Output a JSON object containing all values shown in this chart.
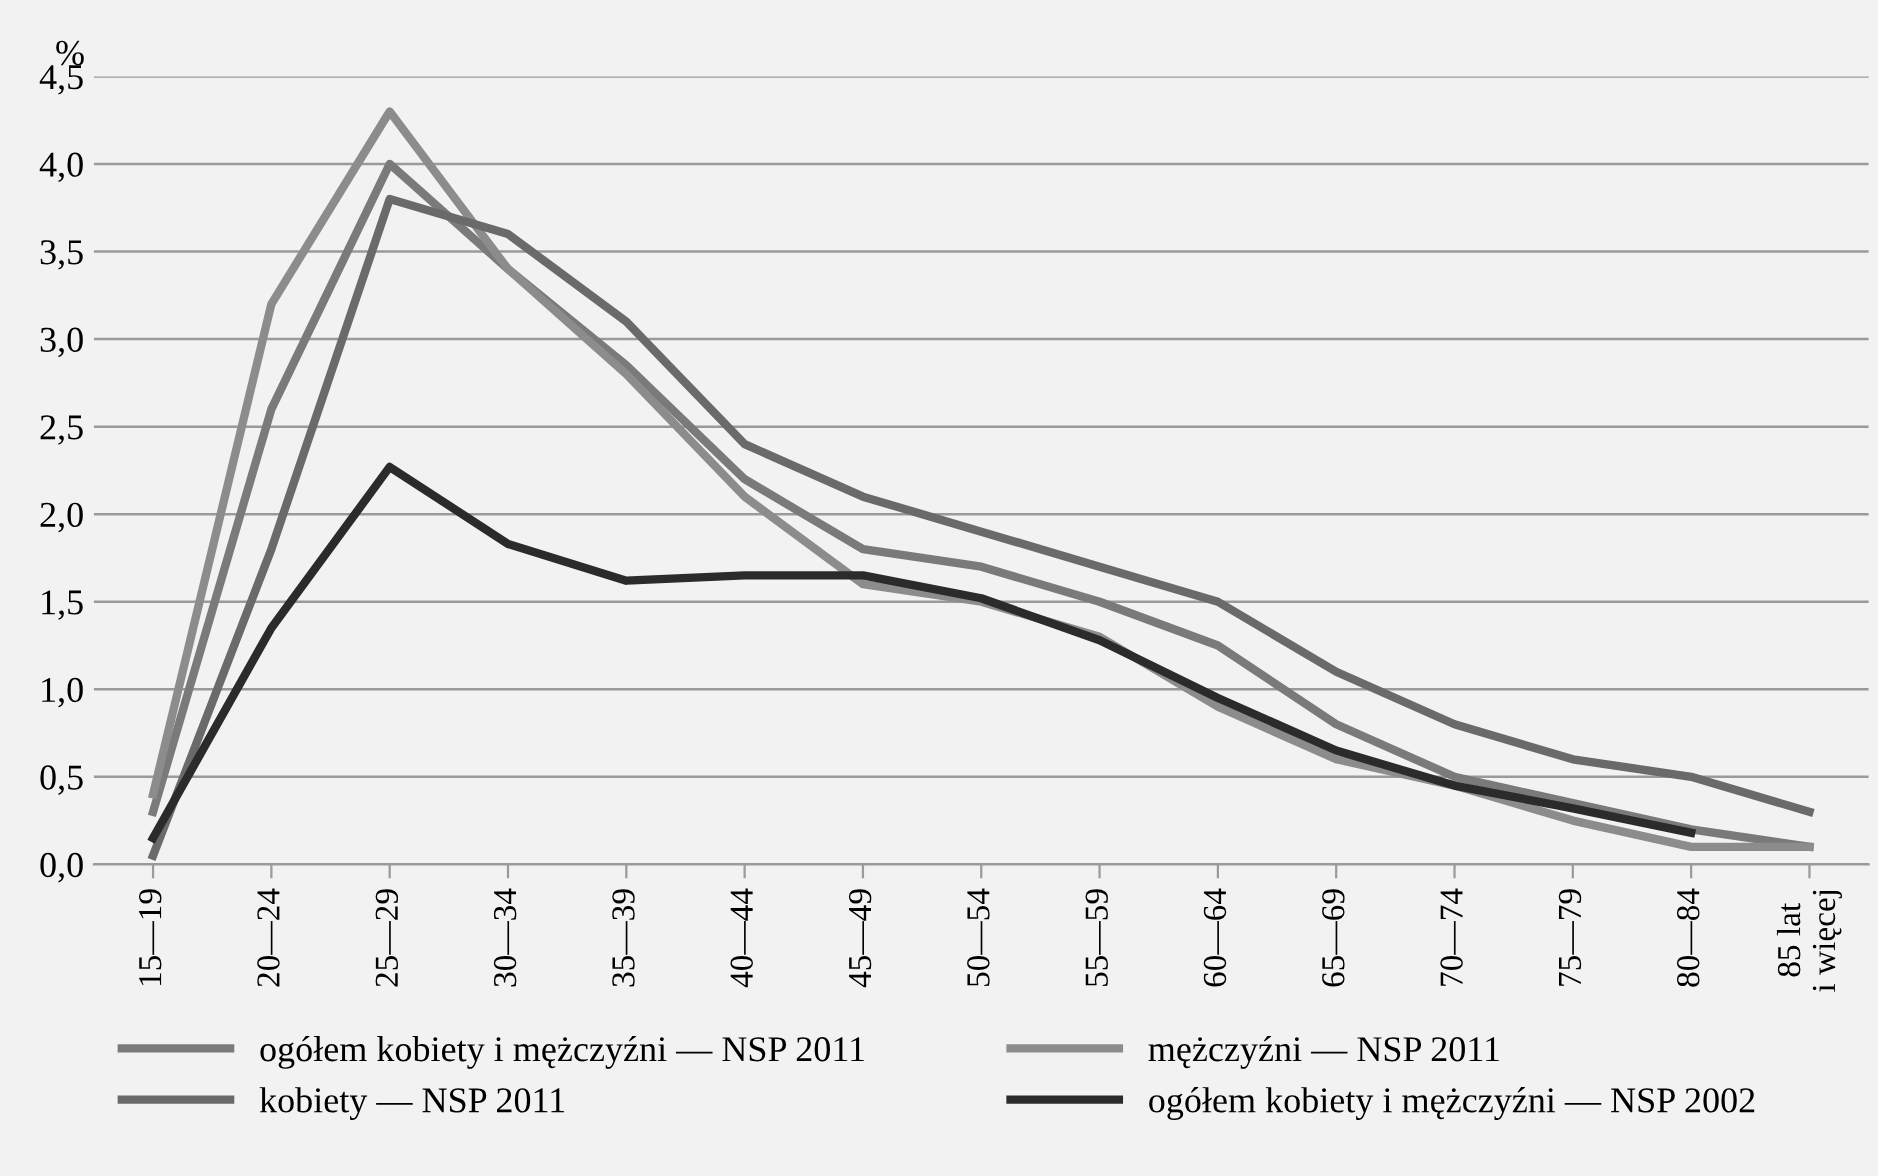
{
  "chart_data": {
    "type": "line",
    "ylabel": "%",
    "categories": [
      "15—19",
      "20—24",
      "25—29",
      "30—34",
      "35—39",
      "40—44",
      "45—49",
      "50—54",
      "55—59",
      "60—64",
      "65—69",
      "70—74",
      "75—79",
      "80—84",
      "85 lat\ni więcej"
    ],
    "series": [
      {
        "name": "ogółem kobiety i mężczyźni — NSP 2011",
        "color": "#7a7a7a",
        "values": [
          0.3,
          2.6,
          4.0,
          3.4,
          2.85,
          2.2,
          1.8,
          1.7,
          1.5,
          1.25,
          0.8,
          0.5,
          0.35,
          0.2,
          0.1
        ]
      },
      {
        "name": "mężczyźni — NSP 2011",
        "color": "#8c8c8c",
        "values": [
          0.4,
          3.2,
          4.3,
          3.4,
          2.8,
          2.1,
          1.6,
          1.5,
          1.3,
          0.9,
          0.6,
          0.45,
          0.25,
          0.1,
          0.1
        ]
      },
      {
        "name": "kobiety — NSP 2011",
        "color": "#6a6a6a",
        "values": [
          0.05,
          1.8,
          3.8,
          3.6,
          3.1,
          2.4,
          2.1,
          1.9,
          1.7,
          1.5,
          1.1,
          0.8,
          0.6,
          0.5,
          0.3
        ]
      },
      {
        "name": "ogółem kobiety i mężczyźni — NSP 2002",
        "color": "#2b2b2b",
        "values": [
          0.15,
          1.35,
          2.27,
          1.83,
          1.62,
          1.65,
          1.65,
          1.52,
          1.28,
          0.95,
          0.65,
          0.45,
          0.32,
          0.18,
          null
        ]
      }
    ],
    "ylim": [
      0,
      4.5
    ],
    "yticks": [
      {
        "value": 0,
        "label": "0,0"
      },
      {
        "value": 0.5,
        "label": "0,5"
      },
      {
        "value": 1,
        "label": "1,0"
      },
      {
        "value": 1.5,
        "label": "1,5"
      },
      {
        "value": 2,
        "label": "2,0"
      },
      {
        "value": 2.5,
        "label": "2,5"
      },
      {
        "value": 3,
        "label": "3,0"
      },
      {
        "value": 3.5,
        "label": "3,5"
      },
      {
        "value": 4,
        "label": "4,0"
      },
      {
        "value": 4.5,
        "label": "4,5"
      }
    ],
    "grid": "y",
    "legend": "bottom",
    "marker": "none",
    "line_style": "solid"
  }
}
